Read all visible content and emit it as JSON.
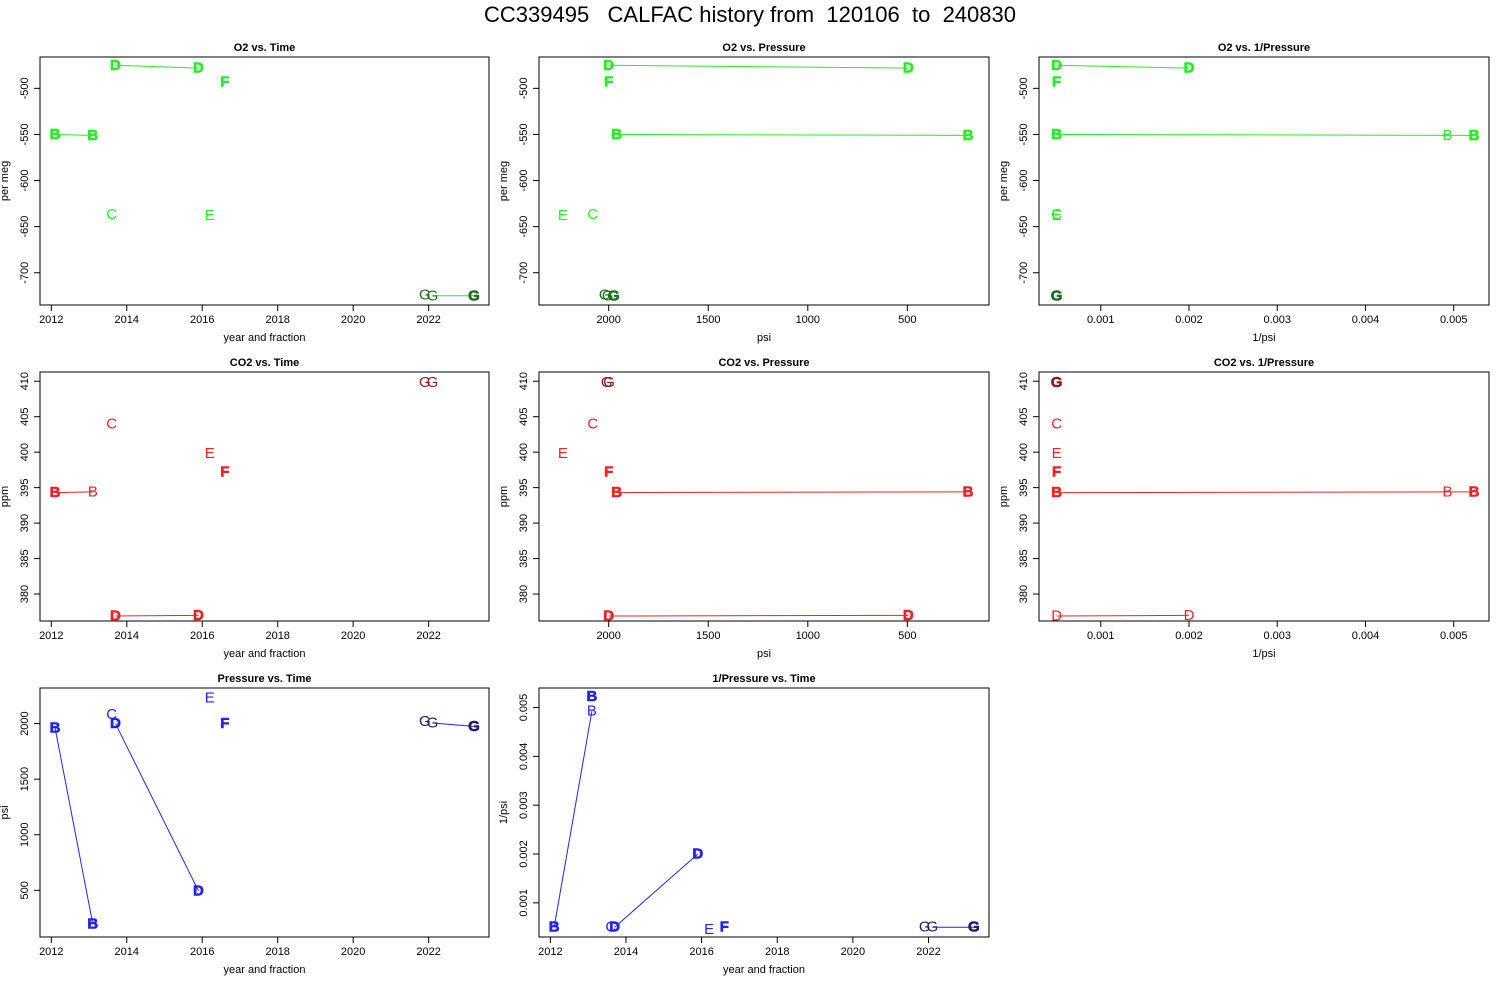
{
  "title": "CC339495   CALFAC history from  120106  to  240830",
  "colors": {
    "o2_light": "#22ee22",
    "o2_dark": "#1a6e1a",
    "co2_light": "#ee2222",
    "co2_dark": "#8b1a1a",
    "p_light": "#2222ee",
    "p_dark": "#1a1a6e",
    "axis": "#000000"
  },
  "chart_data": [
    {
      "type": "scatter",
      "title": "O2 vs. Time",
      "xlabel": "year and fraction",
      "ylabel": "per meg",
      "xlim": [
        2011.7,
        2023.6
      ],
      "ylim": [
        -735,
        -466
      ],
      "x_reverse": false,
      "color_key": "o2",
      "xticks": [
        2012,
        2014,
        2016,
        2018,
        2020,
        2022
      ],
      "xtick_labels": [
        "2012",
        "2014",
        "2016",
        "2018",
        "2020",
        "2022"
      ],
      "yticks": [
        -500,
        -550,
        -600,
        -650,
        -700
      ],
      "ytick_labels": [
        "-500",
        "-550",
        "-600",
        "-650",
        "-700"
      ],
      "points": [
        {
          "x": 2012.1,
          "y": -550,
          "label": "B",
          "bold": true,
          "shade": "light"
        },
        {
          "x": 2013.1,
          "y": -551,
          "label": "B",
          "bold": true,
          "shade": "light"
        },
        {
          "x": 2013.7,
          "y": -475,
          "label": "D",
          "bold": true,
          "shade": "light"
        },
        {
          "x": 2015.9,
          "y": -478,
          "label": "D",
          "bold": true,
          "shade": "light"
        },
        {
          "x": 2016.6,
          "y": -493,
          "label": "F",
          "bold": true,
          "shade": "light"
        },
        {
          "x": 2013.6,
          "y": -637,
          "label": "C",
          "bold": false,
          "shade": "light"
        },
        {
          "x": 2016.2,
          "y": -638,
          "label": "E",
          "bold": false,
          "shade": "light"
        },
        {
          "x": 2021.9,
          "y": -724,
          "label": "G",
          "bold": false,
          "shade": "dark"
        },
        {
          "x": 2022.1,
          "y": -725,
          "label": "G",
          "bold": false,
          "shade": "dark"
        },
        {
          "x": 2023.2,
          "y": -725,
          "label": "G",
          "bold": true,
          "shade": "dark"
        }
      ],
      "segments": [
        [
          0,
          1
        ],
        [
          2,
          3
        ],
        [
          8,
          9
        ]
      ]
    },
    {
      "type": "scatter",
      "title": "O2 vs. Pressure",
      "xlabel": "psi",
      "ylabel": "per meg",
      "xlim": [
        2350,
        90
      ],
      "ylim": [
        -735,
        -466
      ],
      "x_reverse": true,
      "color_key": "o2",
      "xticks": [
        2000,
        1500,
        1000,
        500
      ],
      "xtick_labels": [
        "2000",
        "1500",
        "1000",
        "500"
      ],
      "yticks": [
        -500,
        -550,
        -600,
        -650,
        -700
      ],
      "ytick_labels": [
        "-500",
        "-550",
        "-600",
        "-650",
        "-700"
      ],
      "points": [
        {
          "x": 1960,
          "y": -550,
          "label": "B",
          "bold": true,
          "shade": "light"
        },
        {
          "x": 195,
          "y": -551,
          "label": "B",
          "bold": true,
          "shade": "light"
        },
        {
          "x": 2000,
          "y": -475,
          "label": "D",
          "bold": true,
          "shade": "light"
        },
        {
          "x": 495,
          "y": -478,
          "label": "D",
          "bold": true,
          "shade": "light"
        },
        {
          "x": 2000,
          "y": -493,
          "label": "F",
          "bold": true,
          "shade": "light"
        },
        {
          "x": 2080,
          "y": -637,
          "label": "C",
          "bold": false,
          "shade": "light"
        },
        {
          "x": 2230,
          "y": -638,
          "label": "E",
          "bold": false,
          "shade": "light"
        },
        {
          "x": 2020,
          "y": -724,
          "label": "G",
          "bold": false,
          "shade": "dark"
        },
        {
          "x": 2005,
          "y": -725,
          "label": "G",
          "bold": false,
          "shade": "dark"
        },
        {
          "x": 1975,
          "y": -725,
          "label": "G",
          "bold": true,
          "shade": "dark"
        }
      ],
      "segments": [
        [
          0,
          1
        ],
        [
          2,
          3
        ]
      ]
    },
    {
      "type": "scatter",
      "title": "O2 vs. 1/Pressure",
      "xlabel": "1/psi",
      "ylabel": "per meg",
      "xlim": [
        0.0003,
        0.0054
      ],
      "ylim": [
        -735,
        -466
      ],
      "x_reverse": false,
      "color_key": "o2",
      "xticks": [
        0.001,
        0.002,
        0.003,
        0.004,
        0.005
      ],
      "xtick_labels": [
        "0.001",
        "0.002",
        "0.003",
        "0.004",
        "0.005"
      ],
      "yticks": [
        -500,
        -550,
        -600,
        -650,
        -700
      ],
      "ytick_labels": [
        "-500",
        "-550",
        "-600",
        "-650",
        "-700"
      ],
      "points": [
        {
          "x": 0.0005,
          "y": -550,
          "label": "B",
          "bold": true,
          "shade": "light"
        },
        {
          "x": 0.00493,
          "y": -551,
          "label": "B",
          "bold": false,
          "shade": "light"
        },
        {
          "x": 0.00523,
          "y": -551,
          "label": "B",
          "bold": true,
          "shade": "light"
        },
        {
          "x": 0.0005,
          "y": -475,
          "label": "D",
          "bold": true,
          "shade": "light"
        },
        {
          "x": 0.002,
          "y": -478,
          "label": "D",
          "bold": true,
          "shade": "light"
        },
        {
          "x": 0.0005,
          "y": -493,
          "label": "F",
          "bold": true,
          "shade": "light"
        },
        {
          "x": 0.0005,
          "y": -637,
          "label": "C",
          "bold": false,
          "shade": "light"
        },
        {
          "x": 0.0005,
          "y": -638,
          "label": "E",
          "bold": false,
          "shade": "light"
        },
        {
          "x": 0.0005,
          "y": -725,
          "label": "G",
          "bold": true,
          "shade": "dark"
        }
      ],
      "segments": [
        [
          0,
          2
        ],
        [
          3,
          4
        ]
      ]
    },
    {
      "type": "scatter",
      "title": "CO2 vs. Time",
      "xlabel": "year and fraction",
      "ylabel": "ppm",
      "xlim": [
        2011.7,
        2023.6
      ],
      "ylim": [
        376.2,
        411.3
      ],
      "x_reverse": false,
      "color_key": "co2",
      "xticks": [
        2012,
        2014,
        2016,
        2018,
        2020,
        2022
      ],
      "xtick_labels": [
        "2012",
        "2014",
        "2016",
        "2018",
        "2020",
        "2022"
      ],
      "yticks": [
        380,
        385,
        390,
        395,
        400,
        405,
        410
      ],
      "ytick_labels": [
        "380",
        "385",
        "390",
        "395",
        "400",
        "405",
        "410"
      ],
      "points": [
        {
          "x": 2012.1,
          "y": 394.3,
          "label": "B",
          "bold": true,
          "shade": "light"
        },
        {
          "x": 2013.1,
          "y": 394.4,
          "label": "B",
          "bold": false,
          "shade": "light"
        },
        {
          "x": 2013.6,
          "y": 404.0,
          "label": "C",
          "bold": false,
          "shade": "light"
        },
        {
          "x": 2016.2,
          "y": 399.8,
          "label": "E",
          "bold": false,
          "shade": "light"
        },
        {
          "x": 2016.6,
          "y": 397.2,
          "label": "F",
          "bold": true,
          "shade": "light"
        },
        {
          "x": 2013.7,
          "y": 376.9,
          "label": "D",
          "bold": true,
          "shade": "light"
        },
        {
          "x": 2015.9,
          "y": 377.0,
          "label": "D",
          "bold": true,
          "shade": "light"
        },
        {
          "x": 2021.9,
          "y": 409.8,
          "label": "G",
          "bold": false,
          "shade": "dark"
        },
        {
          "x": 2022.1,
          "y": 409.8,
          "label": "G",
          "bold": false,
          "shade": "dark"
        }
      ],
      "segments": [
        [
          0,
          1
        ],
        [
          5,
          6
        ]
      ]
    },
    {
      "type": "scatter",
      "title": "CO2 vs. Pressure",
      "xlabel": "psi",
      "ylabel": "ppm",
      "xlim": [
        2350,
        90
      ],
      "ylim": [
        376.2,
        411.3
      ],
      "x_reverse": true,
      "color_key": "co2",
      "xticks": [
        2000,
        1500,
        1000,
        500
      ],
      "xtick_labels": [
        "2000",
        "1500",
        "1000",
        "500"
      ],
      "yticks": [
        380,
        385,
        390,
        395,
        400,
        405,
        410
      ],
      "ytick_labels": [
        "380",
        "385",
        "390",
        "395",
        "400",
        "405",
        "410"
      ],
      "points": [
        {
          "x": 1960,
          "y": 394.3,
          "label": "B",
          "bold": true,
          "shade": "light"
        },
        {
          "x": 195,
          "y": 394.4,
          "label": "B",
          "bold": true,
          "shade": "light"
        },
        {
          "x": 2080,
          "y": 404.0,
          "label": "C",
          "bold": false,
          "shade": "light"
        },
        {
          "x": 2230,
          "y": 399.8,
          "label": "E",
          "bold": false,
          "shade": "light"
        },
        {
          "x": 2000,
          "y": 397.2,
          "label": "F",
          "bold": true,
          "shade": "light"
        },
        {
          "x": 2000,
          "y": 376.9,
          "label": "D",
          "bold": true,
          "shade": "light"
        },
        {
          "x": 495,
          "y": 377.0,
          "label": "D",
          "bold": true,
          "shade": "light"
        },
        {
          "x": 2010,
          "y": 409.8,
          "label": "G",
          "bold": false,
          "shade": "dark"
        },
        {
          "x": 1998,
          "y": 409.8,
          "label": "G",
          "bold": false,
          "shade": "dark"
        }
      ],
      "segments": [
        [
          0,
          1
        ],
        [
          5,
          6
        ]
      ]
    },
    {
      "type": "scatter",
      "title": "CO2 vs. 1/Pressure",
      "xlabel": "1/psi",
      "ylabel": "ppm",
      "xlim": [
        0.0003,
        0.0054
      ],
      "ylim": [
        376.2,
        411.3
      ],
      "x_reverse": false,
      "color_key": "co2",
      "xticks": [
        0.001,
        0.002,
        0.003,
        0.004,
        0.005
      ],
      "xtick_labels": [
        "0.001",
        "0.002",
        "0.003",
        "0.004",
        "0.005"
      ],
      "yticks": [
        380,
        385,
        390,
        395,
        400,
        405,
        410
      ],
      "ytick_labels": [
        "380",
        "385",
        "390",
        "395",
        "400",
        "405",
        "410"
      ],
      "points": [
        {
          "x": 0.0005,
          "y": 394.3,
          "label": "B",
          "bold": true,
          "shade": "light"
        },
        {
          "x": 0.00493,
          "y": 394.4,
          "label": "B",
          "bold": false,
          "shade": "light"
        },
        {
          "x": 0.00523,
          "y": 394.4,
          "label": "B",
          "bold": true,
          "shade": "light"
        },
        {
          "x": 0.0005,
          "y": 404.0,
          "label": "C",
          "bold": false,
          "shade": "light"
        },
        {
          "x": 0.0005,
          "y": 399.8,
          "label": "E",
          "bold": false,
          "shade": "light"
        },
        {
          "x": 0.0005,
          "y": 397.2,
          "label": "F",
          "bold": true,
          "shade": "light"
        },
        {
          "x": 0.0005,
          "y": 376.9,
          "label": "D",
          "bold": false,
          "shade": "light"
        },
        {
          "x": 0.002,
          "y": 377.0,
          "label": "D",
          "bold": false,
          "shade": "light"
        },
        {
          "x": 0.0005,
          "y": 409.8,
          "label": "G",
          "bold": true,
          "shade": "dark"
        }
      ],
      "segments": [
        [
          0,
          2
        ],
        [
          6,
          7
        ]
      ]
    },
    {
      "type": "scatter",
      "title": "Pressure vs. Time",
      "xlabel": "year and fraction",
      "ylabel": "psi",
      "xlim": [
        2011.7,
        2023.6
      ],
      "ylim": [
        80,
        2320
      ],
      "x_reverse": false,
      "color_key": "p",
      "xticks": [
        2012,
        2014,
        2016,
        2018,
        2020,
        2022
      ],
      "xtick_labels": [
        "2012",
        "2014",
        "2016",
        "2018",
        "2020",
        "2022"
      ],
      "yticks": [
        500,
        1000,
        1500,
        2000
      ],
      "ytick_labels": [
        "500",
        "1000",
        "1500",
        "2000"
      ],
      "points": [
        {
          "x": 2012.1,
          "y": 1960,
          "label": "B",
          "bold": true,
          "shade": "light"
        },
        {
          "x": 2013.1,
          "y": 195,
          "label": "B",
          "bold": true,
          "shade": "light"
        },
        {
          "x": 2013.6,
          "y": 2080,
          "label": "C",
          "bold": false,
          "shade": "light"
        },
        {
          "x": 2013.7,
          "y": 2000,
          "label": "D",
          "bold": true,
          "shade": "light"
        },
        {
          "x": 2015.9,
          "y": 495,
          "label": "D",
          "bold": true,
          "shade": "light"
        },
        {
          "x": 2016.2,
          "y": 2230,
          "label": "E",
          "bold": false,
          "shade": "light"
        },
        {
          "x": 2016.6,
          "y": 2000,
          "label": "F",
          "bold": true,
          "shade": "light"
        },
        {
          "x": 2021.9,
          "y": 2020,
          "label": "G",
          "bold": false,
          "shade": "dark"
        },
        {
          "x": 2022.1,
          "y": 2005,
          "label": "G",
          "bold": false,
          "shade": "dark"
        },
        {
          "x": 2023.2,
          "y": 1975,
          "label": "G",
          "bold": true,
          "shade": "dark"
        }
      ],
      "segments": [
        [
          0,
          1
        ],
        [
          3,
          4
        ],
        [
          8,
          9
        ]
      ]
    },
    {
      "type": "scatter",
      "title": "1/Pressure vs. Time",
      "xlabel": "year and fraction",
      "ylabel": "1/psi",
      "xlim": [
        2011.7,
        2023.6
      ],
      "ylim": [
        0.0003,
        0.0054
      ],
      "x_reverse": false,
      "color_key": "p",
      "xticks": [
        2012,
        2014,
        2016,
        2018,
        2020,
        2022
      ],
      "xtick_labels": [
        "2012",
        "2014",
        "2016",
        "2018",
        "2020",
        "2022"
      ],
      "yticks": [
        0.001,
        0.002,
        0.003,
        0.004,
        0.005
      ],
      "ytick_labels": [
        "0.001",
        "0.002",
        "0.003",
        "0.004",
        "0.005"
      ],
      "points": [
        {
          "x": 2012.1,
          "y": 0.0005,
          "label": "B",
          "bold": true,
          "shade": "light"
        },
        {
          "x": 2013.1,
          "y": 0.00493,
          "label": "B",
          "bold": false,
          "shade": "light"
        },
        {
          "x": 2013.1,
          "y": 0.00523,
          "label": "B",
          "bold": true,
          "shade": "light"
        },
        {
          "x": 2013.6,
          "y": 0.0005,
          "label": "C",
          "bold": false,
          "shade": "light"
        },
        {
          "x": 2013.7,
          "y": 0.0005,
          "label": "D",
          "bold": true,
          "shade": "light"
        },
        {
          "x": 2015.9,
          "y": 0.002,
          "label": "D",
          "bold": true,
          "shade": "light"
        },
        {
          "x": 2016.2,
          "y": 0.00045,
          "label": "E",
          "bold": false,
          "shade": "light"
        },
        {
          "x": 2016.6,
          "y": 0.0005,
          "label": "F",
          "bold": true,
          "shade": "light"
        },
        {
          "x": 2021.9,
          "y": 0.0005,
          "label": "G",
          "bold": false,
          "shade": "dark"
        },
        {
          "x": 2022.1,
          "y": 0.0005,
          "label": "G",
          "bold": false,
          "shade": "dark"
        },
        {
          "x": 2023.2,
          "y": 0.0005,
          "label": "G",
          "bold": true,
          "shade": "dark"
        }
      ],
      "segments": [
        [
          0,
          1
        ],
        [
          4,
          5
        ],
        [
          9,
          10
        ]
      ]
    }
  ]
}
